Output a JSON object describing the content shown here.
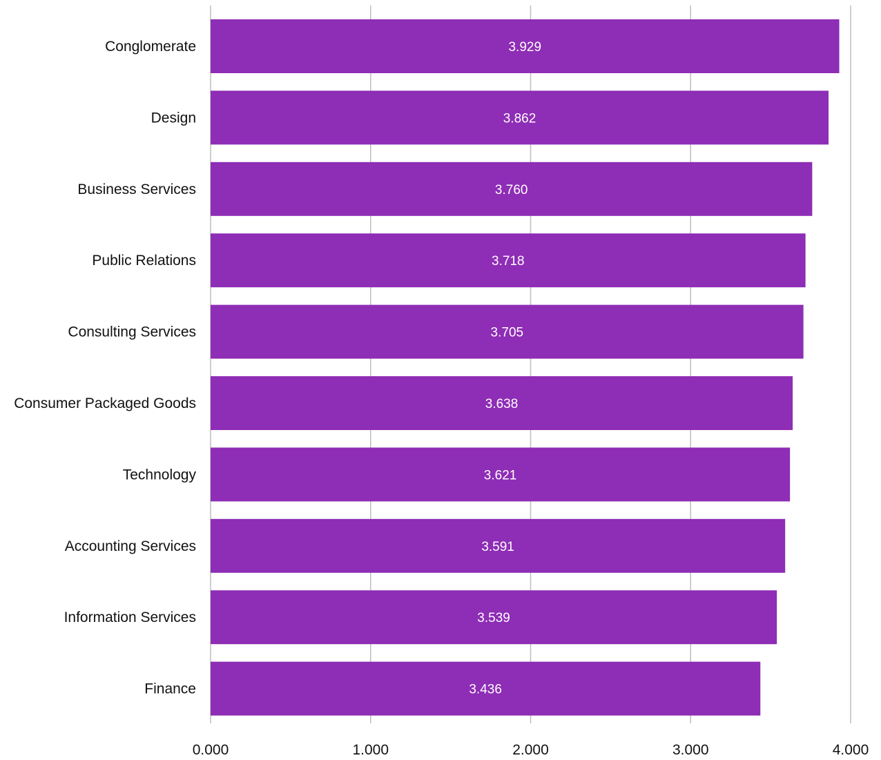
{
  "chart_data": {
    "type": "bar",
    "orientation": "horizontal",
    "categories": [
      "Conglomerate",
      "Design",
      "Business Services",
      "Public Relations",
      "Consulting Services",
      "Consumer Packaged Goods",
      "Technology",
      "Accounting Services",
      "Information Services",
      "Finance"
    ],
    "values": [
      3.929,
      3.862,
      3.76,
      3.718,
      3.705,
      3.638,
      3.621,
      3.591,
      3.539,
      3.436
    ],
    "value_labels": [
      "3.929",
      "3.862",
      "3.760",
      "3.718",
      "3.705",
      "3.638",
      "3.621",
      "3.591",
      "3.539",
      "3.436"
    ],
    "x_ticks": [
      "0.000",
      "1.000",
      "2.000",
      "3.000",
      "4.000"
    ],
    "xlim": [
      0,
      4
    ],
    "title": "",
    "xlabel": "",
    "ylabel": "",
    "grid": "vertical",
    "legend": "none",
    "bar_color": "#8e2db5",
    "grid_color": "#bdbdbd"
  }
}
